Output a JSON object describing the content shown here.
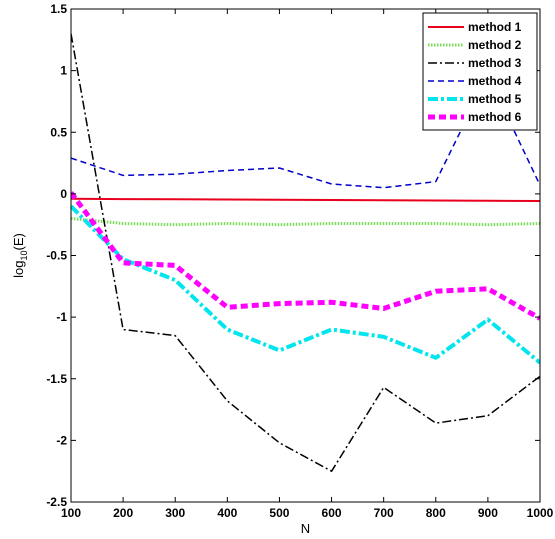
{
  "chart_data": {
    "type": "line",
    "xlabel": "N",
    "ylabel_main": "log",
    "ylabel_sub": "10",
    "ylabel_tail": "(E)",
    "xlim": [
      100,
      1000
    ],
    "ylim": [
      -2.5,
      1.5
    ],
    "x_ticks": [
      100,
      200,
      300,
      400,
      500,
      600,
      700,
      800,
      900,
      1000
    ],
    "y_ticks": [
      -2.5,
      -2,
      -1.5,
      -1,
      -0.5,
      0,
      0.5,
      1,
      1.5
    ],
    "x_tick_labels": [
      "100",
      "200",
      "300",
      "400",
      "500",
      "600",
      "700",
      "800",
      "900",
      "1000"
    ],
    "y_tick_labels": [
      "-2.5",
      "-2",
      "-1.5",
      "-1",
      "-0.5",
      "0",
      "0.5",
      "1",
      "1.5"
    ],
    "grid": false,
    "legend_position": "top-right",
    "x": [
      100,
      200,
      300,
      400,
      500,
      600,
      700,
      800,
      900,
      1000
    ],
    "series": [
      {
        "name": "method 1",
        "color": "#e8001c",
        "style": "solid",
        "values": [
          -0.04,
          -0.042,
          -0.044,
          -0.046,
          -0.048,
          -0.05,
          -0.052,
          -0.054,
          -0.056,
          -0.058
        ]
      },
      {
        "name": "method 2",
        "color": "#77dd55",
        "style": "dotted",
        "values": [
          -0.2,
          -0.24,
          -0.25,
          -0.24,
          -0.25,
          -0.24,
          -0.24,
          -0.24,
          -0.25,
          -0.24
        ]
      },
      {
        "name": "method 3",
        "color": "#000000",
        "style": "dashdot",
        "values": [
          1.3,
          -1.1,
          -1.15,
          -1.68,
          -2.02,
          -2.25,
          -1.57,
          -1.86,
          -1.8,
          -1.48
        ]
      },
      {
        "name": "method 4",
        "color": "#0000cc",
        "style": "dashed",
        "values": [
          0.29,
          0.15,
          0.16,
          0.19,
          0.21,
          0.08,
          0.05,
          0.1,
          0.96,
          0.07
        ]
      },
      {
        "name": "method 5",
        "color": "#00e5ee",
        "style": "thickdashdot",
        "values": [
          -0.1,
          -0.53,
          -0.7,
          -1.1,
          -1.27,
          -1.1,
          -1.16,
          -1.33,
          -1.02,
          -1.37
        ]
      },
      {
        "name": "method 6",
        "color": "#ff00ff",
        "style": "thickdashed",
        "values": [
          0.01,
          -0.56,
          -0.58,
          -0.92,
          -0.89,
          -0.88,
          -0.93,
          -0.79,
          -0.77,
          -1.01
        ]
      }
    ]
  }
}
